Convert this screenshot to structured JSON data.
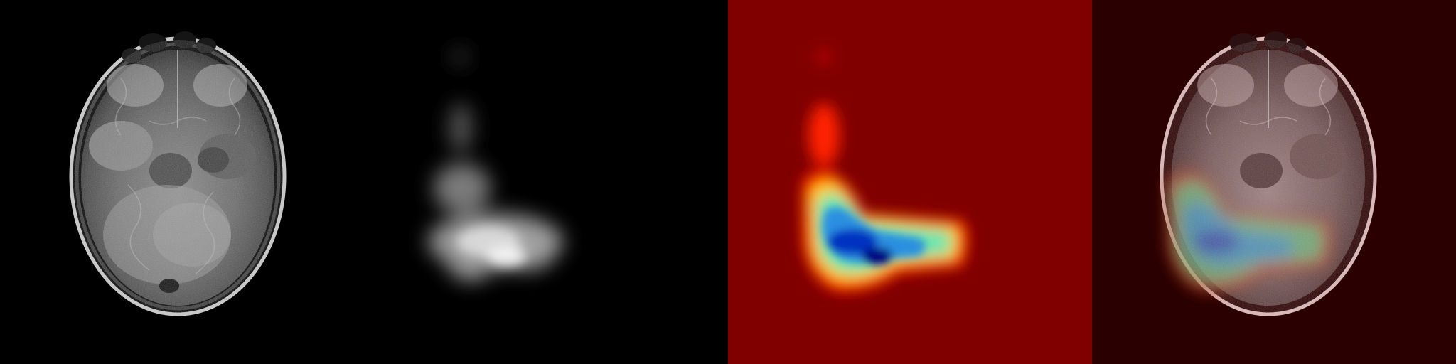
{
  "panels": [
    {
      "name": "mri-slice-image",
      "background": "#000000"
    },
    {
      "name": "grayscale-saliency-map",
      "background": "#000000"
    },
    {
      "name": "jet-heatmap",
      "background": "#800000"
    },
    {
      "name": "heatmap-overlay",
      "background": "#2a0000"
    }
  ],
  "colormap": {
    "name": "jet",
    "low": "#800000",
    "mid_red": "#ff0000",
    "mid_yellow": "#ffff00",
    "mid_cyan": "#40e0d0",
    "high": "#00008b"
  }
}
